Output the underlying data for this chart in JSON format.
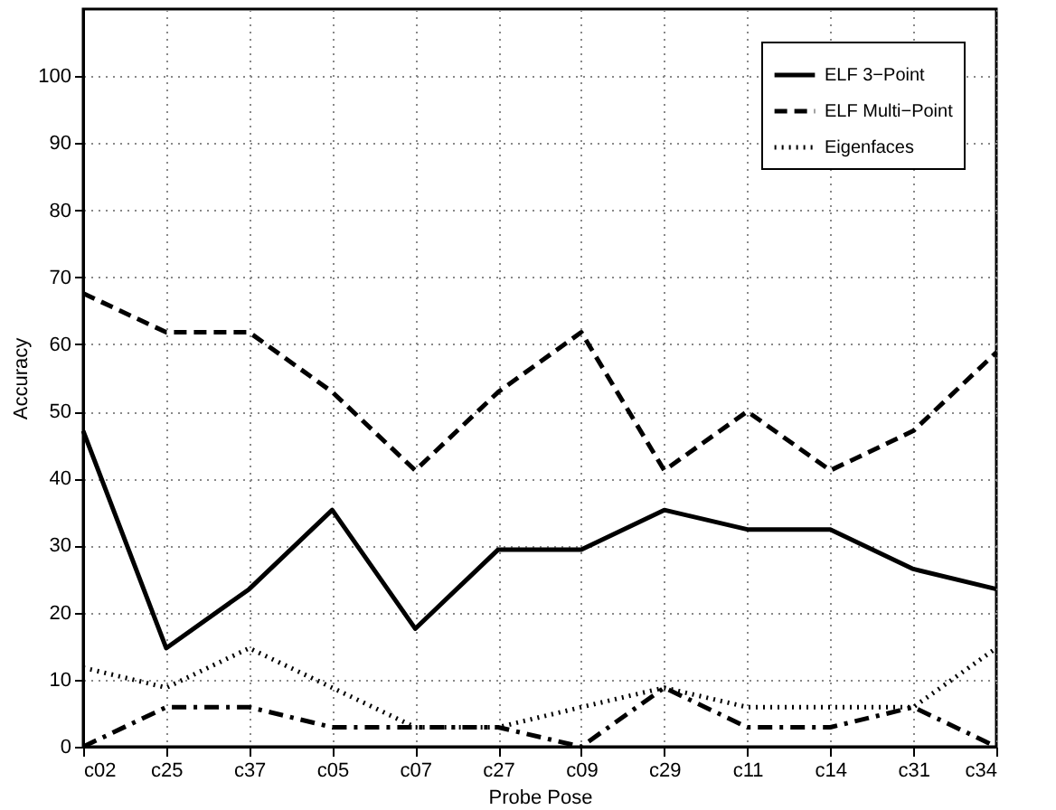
{
  "chart_data": {
    "type": "line",
    "xlabel": "Probe Pose",
    "ylabel": "Accuracy",
    "categories": [
      "c02",
      "c25",
      "c37",
      "c05",
      "c07",
      "c27",
      "c09",
      "c29",
      "c11",
      "c14",
      "c31",
      "c34"
    ],
    "series": [
      {
        "name": "ELF 3−Point",
        "color": "#000000",
        "line_style": "solid",
        "values": [
          47.1,
          14.7,
          23.5,
          35.3,
          17.6,
          29.4,
          29.4,
          35.3,
          32.4,
          32.4,
          26.5,
          23.5
        ]
      },
      {
        "name": "ELF Multi−Point",
        "color": "#000000",
        "line_style": "dashed",
        "values": [
          67.6,
          61.8,
          61.8,
          52.9,
          41.2,
          52.9,
          61.8,
          41.2,
          50,
          41.2,
          47.1,
          58.8
        ]
      },
      {
        "color": "#000000",
        "line_style": "dashdot",
        "values": [
          0,
          5.9,
          5.9,
          2.9,
          2.9,
          2.9,
          0,
          8.8,
          2.9,
          2.9,
          5.9,
          0
        ]
      },
      {
        "name": "Eigenfaces",
        "color": "#000000",
        "line_style": "dotted",
        "values": [
          11.8,
          8.8,
          14.7,
          8.8,
          2.9,
          2.9,
          5.9,
          8.8,
          5.9,
          5.9,
          5.9,
          14.7
        ]
      }
    ],
    "ylim": [
      0,
      110
    ],
    "yticks": [
      0,
      10,
      20,
      30,
      40,
      50,
      60,
      70,
      80,
      90,
      100
    ],
    "grid": true,
    "legend": "top right"
  }
}
